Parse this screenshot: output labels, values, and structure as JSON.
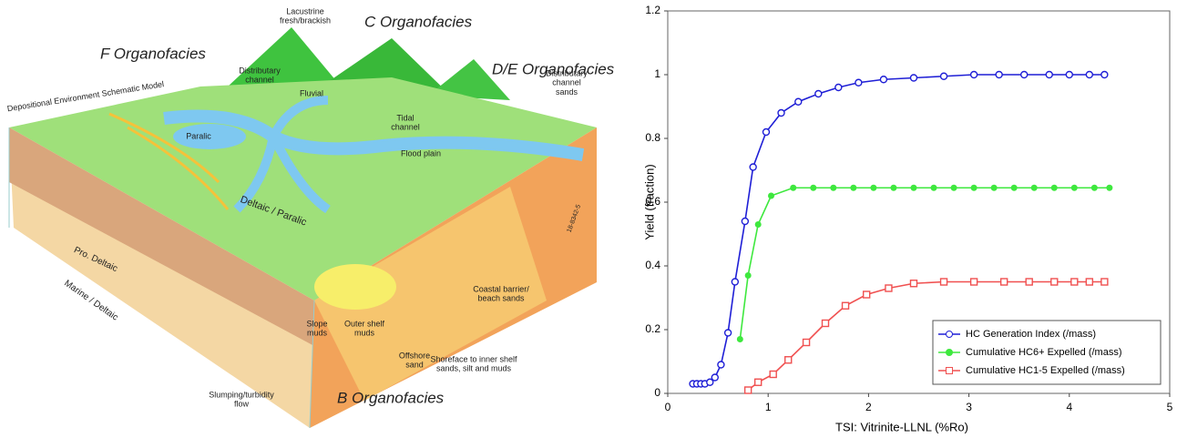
{
  "diagram": {
    "labels": [
      {
        "lines": [
          "F Organofacies"
        ]
      },
      {
        "lines": [
          "C Organofacies"
        ]
      },
      {
        "lines": [
          "D/E Organofacies"
        ]
      },
      {
        "lines": [
          "B Organofacies"
        ]
      },
      {
        "lines": [
          "Lacustrine",
          "fresh/brackish"
        ]
      },
      {
        "lines": [
          "Distributary",
          "channel"
        ]
      },
      {
        "lines": [
          "Fluvial"
        ]
      },
      {
        "lines": [
          "Depositional Environment Schematic Model"
        ]
      },
      {
        "lines": [
          "Paralic"
        ]
      },
      {
        "lines": [
          "Tidal",
          "channel"
        ]
      },
      {
        "lines": [
          "Flood plain"
        ]
      },
      {
        "lines": [
          "Distributary",
          "channel",
          "sands"
        ]
      },
      {
        "lines": [
          "Deltaic / Paralic"
        ]
      },
      {
        "lines": [
          "Pro. Deltaic"
        ]
      },
      {
        "lines": [
          "Marine / Deltaic"
        ]
      },
      {
        "lines": [
          "Coastal barrier/",
          "beach sands"
        ]
      },
      {
        "lines": [
          "Slope",
          "muds"
        ]
      },
      {
        "lines": [
          "Outer shelf",
          "muds"
        ]
      },
      {
        "lines": [
          "Offshore",
          "sand"
        ]
      },
      {
        "lines": [
          "Shoreface to inner shelf",
          "sands, silt and muds"
        ]
      },
      {
        "lines": [
          "Slumping/turbidity",
          "flow"
        ]
      },
      {
        "lines": [
          "18-8342-5"
        ]
      }
    ]
  },
  "chart_data": {
    "type": "line",
    "xlabel": "TSI: Vitrinite-LLNL (%Ro)",
    "ylabel": "Yield (fraction)",
    "xlim": [
      0,
      5
    ],
    "xticks": [
      0,
      1,
      2,
      3,
      4,
      5
    ],
    "ylim": [
      0,
      1.2
    ],
    "yticks": [
      0,
      0.2,
      0.4,
      0.6,
      0.8,
      1,
      1.2
    ],
    "legend": "lower right",
    "series": [
      {
        "name": "HC Generation Index (/mass)",
        "color": "#1f1fd6",
        "marker": "circle",
        "x": [
          0.25,
          0.29,
          0.33,
          0.37,
          0.42,
          0.47,
          0.53,
          0.6,
          0.67,
          0.77,
          0.85,
          0.98,
          1.13,
          1.3,
          1.5,
          1.7,
          1.9,
          2.15,
          2.45,
          2.75,
          3.05,
          3.3,
          3.55,
          3.8,
          4.0,
          4.2,
          4.35
        ],
        "values": [
          0.03,
          0.03,
          0.03,
          0.03,
          0.035,
          0.05,
          0.09,
          0.19,
          0.35,
          0.54,
          0.71,
          0.82,
          0.88,
          0.915,
          0.94,
          0.96,
          0.975,
          0.985,
          0.99,
          0.995,
          1,
          1,
          1,
          1,
          1,
          1,
          1
        ]
      },
      {
        "name": "Cumulative HC6+ Expelled (/mass)",
        "color": "#3ee83e",
        "marker": "dot",
        "x": [
          0.72,
          0.8,
          0.9,
          1.03,
          1.25,
          1.45,
          1.65,
          1.85,
          2.05,
          2.25,
          2.45,
          2.65,
          2.85,
          3.05,
          3.25,
          3.45,
          3.65,
          3.85,
          4.05,
          4.25,
          4.4
        ],
        "values": [
          0.17,
          0.37,
          0.53,
          0.62,
          0.645,
          0.645,
          0.645,
          0.645,
          0.645,
          0.645,
          0.645,
          0.645,
          0.645,
          0.645,
          0.645,
          0.645,
          0.645,
          0.645,
          0.645,
          0.645,
          0.645
        ]
      },
      {
        "name": "Cumulative HC1-5 Expelled (/mass)",
        "color": "#f05050",
        "marker": "square",
        "x": [
          0.8,
          0.9,
          1.05,
          1.2,
          1.38,
          1.57,
          1.77,
          1.98,
          2.2,
          2.45,
          2.75,
          3.05,
          3.35,
          3.6,
          3.85,
          4.05,
          4.2,
          4.35
        ],
        "values": [
          0.01,
          0.035,
          0.06,
          0.105,
          0.16,
          0.22,
          0.275,
          0.31,
          0.33,
          0.345,
          0.35,
          0.35,
          0.35,
          0.35,
          0.35,
          0.35,
          0.35,
          0.35
        ]
      }
    ]
  }
}
